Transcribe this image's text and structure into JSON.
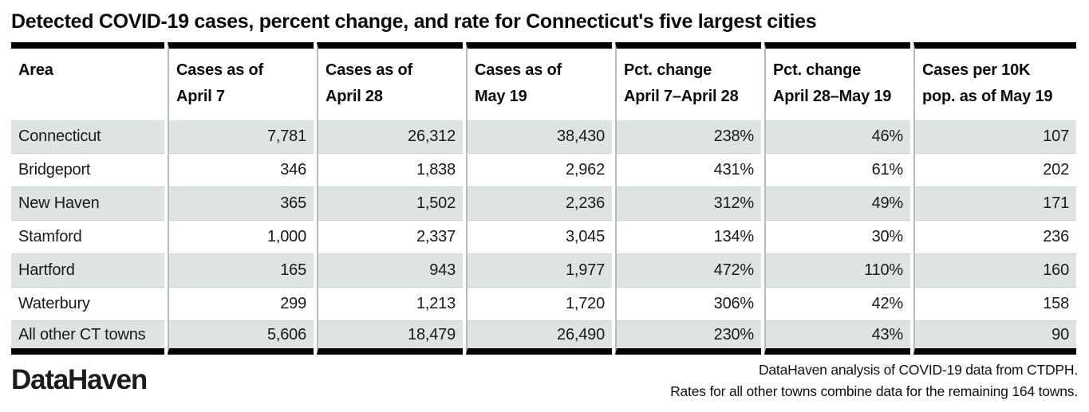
{
  "title": "Detected COVID-19 cases, percent change, and rate for Connecticut's five largest cities",
  "table": {
    "columns": [
      {
        "line1": "Area",
        "line2": ""
      },
      {
        "line1": "Cases as of",
        "line2": "April 7"
      },
      {
        "line1": "Cases as of",
        "line2": "April 28"
      },
      {
        "line1": "Cases as of",
        "line2": "May 19"
      },
      {
        "line1": "Pct. change",
        "line2": "April 7–April 28"
      },
      {
        "line1": "Pct. change",
        "line2": "April 28–May 19"
      },
      {
        "line1": "Cases per 10K",
        "line2": "pop. as of May 19"
      }
    ],
    "rows": [
      {
        "cells": [
          "Connecticut",
          "7,781",
          "26,312",
          "38,430",
          "238%",
          "46%",
          "107"
        ]
      },
      {
        "cells": [
          "Bridgeport",
          "346",
          "1,838",
          "2,962",
          "431%",
          "61%",
          "202"
        ]
      },
      {
        "cells": [
          "New Haven",
          "365",
          "1,502",
          "2,236",
          "312%",
          "49%",
          "171"
        ]
      },
      {
        "cells": [
          "Stamford",
          "1,000",
          "2,337",
          "3,045",
          "134%",
          "30%",
          "236"
        ]
      },
      {
        "cells": [
          "Hartford",
          "165",
          "943",
          "1,977",
          "472%",
          "110%",
          "160"
        ]
      },
      {
        "cells": [
          "Waterbury",
          "299",
          "1,213",
          "1,720",
          "306%",
          "42%",
          "158"
        ]
      },
      {
        "cells": [
          "All other CT towns",
          "5,606",
          "18,479",
          "26,490",
          "230%",
          "43%",
          "90"
        ]
      }
    ]
  },
  "footer": {
    "logo": "DataHaven",
    "note_line1": "DataHaven analysis of COVID-19 data from CTDPH.",
    "note_line2": "Rates for all other towns combine data for the remaining 164 towns."
  },
  "colors": {
    "row_shade": "#dde4e3",
    "bar": "#000000",
    "grid_line": "#b4bbbc"
  },
  "chart_data": {
    "type": "table",
    "title": "Detected COVID-19 cases, percent change, and rate for Connecticut's five largest cities",
    "columns": [
      "Area",
      "Cases as of April 7",
      "Cases as of April 28",
      "Cases as of May 19",
      "Pct. change April 7–April 28",
      "Pct. change April 28–May 19",
      "Cases per 10K pop. as of May 19"
    ],
    "rows": [
      [
        "Connecticut",
        7781,
        26312,
        38430,
        "238%",
        "46%",
        107
      ],
      [
        "Bridgeport",
        346,
        1838,
        2962,
        "431%",
        "61%",
        202
      ],
      [
        "New Haven",
        365,
        1502,
        2236,
        "312%",
        "49%",
        171
      ],
      [
        "Stamford",
        1000,
        2337,
        3045,
        "134%",
        "30%",
        236
      ],
      [
        "Hartford",
        165,
        943,
        1977,
        "472%",
        "110%",
        160
      ],
      [
        "Waterbury",
        299,
        1213,
        1720,
        "306%",
        "42%",
        158
      ],
      [
        "All other CT towns",
        5606,
        18479,
        26490,
        "230%",
        "43%",
        90
      ]
    ],
    "notes": [
      "DataHaven analysis of COVID-19 data from CTDPH.",
      "Rates for all other towns combine data for the remaining 164 towns."
    ]
  }
}
